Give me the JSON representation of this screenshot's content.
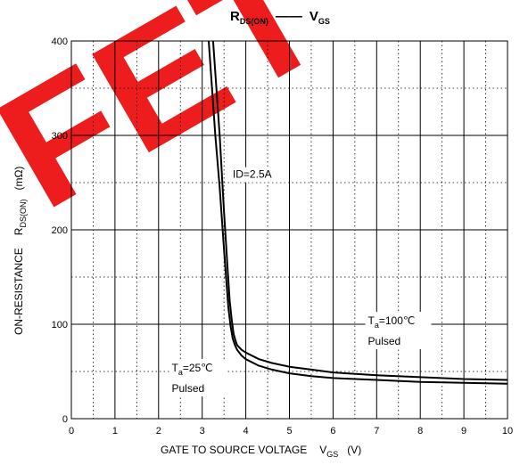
{
  "watermark": "FET",
  "chart_data": {
    "type": "line",
    "title": {
      "main": "R",
      "main_sub": "DS(ON)",
      "sep": "——",
      "second": "V",
      "second_sub": "GS"
    },
    "xlabel": {
      "text": "GATE TO SOURCE VOLTAGE",
      "sym": "V",
      "sub": "GS",
      "unit": "(V)"
    },
    "ylabel": {
      "text": "ON-RESISTANCE",
      "sym": "R",
      "sub": "DS(ON)",
      "unit": "(mΩ)"
    },
    "xlim": [
      0,
      10
    ],
    "ylim": [
      0,
      400
    ],
    "x_ticks": [
      "0",
      "1",
      "2",
      "3",
      "4",
      "5",
      "6",
      "7",
      "8",
      "9",
      "10"
    ],
    "y_ticks": [
      "0",
      "100",
      "200",
      "300",
      "400"
    ],
    "grid": {
      "major": "solid",
      "minor": "dotted",
      "x_step": 0.5,
      "y_step": 50
    },
    "annotations": {
      "id_label": {
        "text": "ID=2.5A",
        "x": 3.7,
        "y": 255
      },
      "t25": {
        "prefix": "T",
        "sub": "a",
        "suffix": "=25℃",
        "line2": "Pulsed",
        "x": 2.3,
        "y": 50
      },
      "t100": {
        "prefix": "T",
        "sub": "a",
        "suffix": "=100℃",
        "line2": "Pulsed",
        "x": 6.8,
        "y": 100
      }
    },
    "series": [
      {
        "x": [
          3.15,
          3.3,
          3.4,
          3.5,
          3.55,
          3.6,
          3.65,
          3.7,
          3.75,
          3.8,
          3.9,
          4.0,
          4.3,
          4.6,
          5.0,
          5.5,
          6.0,
          7.0,
          8.0,
          9.0,
          10.0
        ],
        "y": [
          400,
          300,
          245,
          180,
          148,
          118,
          98,
          85,
          78,
          73,
          67,
          63,
          56,
          52,
          48,
          45,
          43,
          41,
          39,
          38,
          37
        ]
      },
      {
        "x": [
          3.25,
          3.4,
          3.5,
          3.58,
          3.63,
          3.68,
          3.72,
          3.76,
          3.8,
          3.9,
          4.0,
          4.3,
          4.6,
          5.0,
          5.5,
          6.0,
          7.0,
          8.0,
          9.0,
          10.0
        ],
        "y": [
          400,
          300,
          220,
          160,
          125,
          103,
          90,
          83,
          78,
          73,
          70,
          63,
          59,
          55,
          52,
          49,
          46,
          44,
          42,
          41
        ]
      }
    ]
  }
}
